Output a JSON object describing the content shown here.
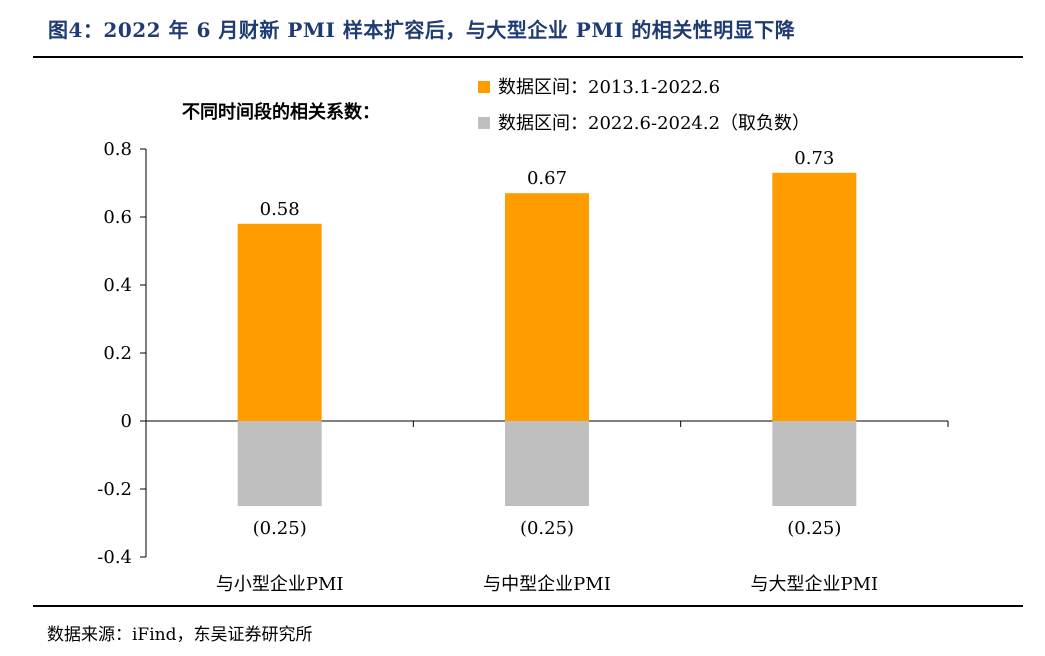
{
  "header": {
    "title": "图4：2022 年 6 月财新 PMI 样本扩容后，与大型企业 PMI 的相关性明显下降"
  },
  "footer": {
    "source": "数据来源：iFind，东吴证券研究所"
  },
  "chart_data": {
    "type": "bar",
    "title": "不同时间段的相关系数：",
    "xlabel": "",
    "ylabel": "",
    "categories": [
      "与小型企业PMI",
      "与中型企业PMI",
      "与大型企业PMI"
    ],
    "series": [
      {
        "name": "数据区间：2013.1-2022.6",
        "values": [
          0.58,
          0.67,
          0.73
        ],
        "labels": [
          "0.58",
          "0.67",
          "0.73"
        ],
        "color": "#ff9c00"
      },
      {
        "name": "数据区间：2022.6-2024.2（取负数）",
        "values": [
          -0.25,
          -0.25,
          -0.25
        ],
        "labels": [
          "(0.25)",
          "(0.25)",
          "(0.25)"
        ],
        "color": "#bfbfbf"
      }
    ],
    "ylim": [
      -0.4,
      0.8
    ],
    "yticks": [
      0.8,
      0.6,
      0.4,
      0.2,
      0,
      -0.2,
      -0.4
    ],
    "ytick_labels": [
      "0.8",
      "0.6",
      "0.4",
      "0.2",
      "0",
      "-0.2",
      "-0.4"
    ],
    "grid": false,
    "legend_position": "top-right"
  }
}
